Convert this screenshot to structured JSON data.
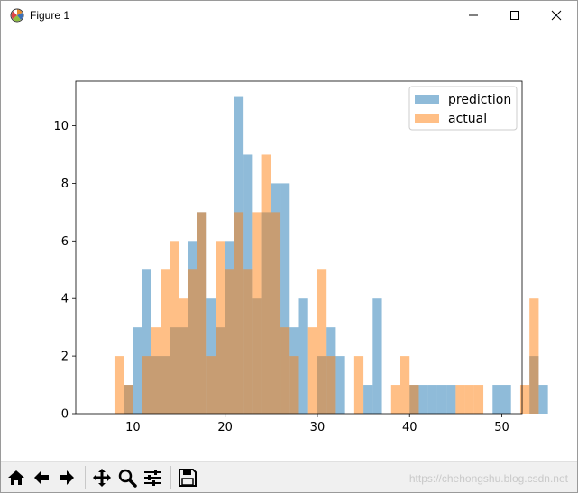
{
  "window": {
    "title": "Figure 1",
    "controls": [
      "minimize-icon",
      "maximize-icon",
      "close-icon"
    ]
  },
  "toolbar": {
    "buttons": [
      "home-icon",
      "back-arrow-icon",
      "forward-arrow-icon",
      "pan-icon",
      "zoom-icon",
      "subplots-config-icon",
      "save-icon"
    ]
  },
  "watermark": "https://chehongshu.blog.csdn.net",
  "chart_data": {
    "type": "bar",
    "subtype": "overlapping-histogram",
    "title": "",
    "xlabel": "",
    "ylabel": "",
    "xlim": [
      3.8,
      52.2
    ],
    "ylim": [
      0,
      11.55
    ],
    "xticks": [
      10,
      20,
      30,
      40,
      50
    ],
    "yticks": [
      0,
      2,
      4,
      6,
      8,
      10
    ],
    "bin_start": 5.0,
    "bin_width": 1.0,
    "legend": {
      "location": "upper right",
      "entries": [
        "prediction",
        "actual"
      ]
    },
    "grid": false,
    "series": [
      {
        "name": "prediction",
        "color": "#1f77b4",
        "alpha": 0.5,
        "values": [
          0,
          0,
          0,
          0,
          1,
          3,
          5,
          2,
          2,
          3,
          3,
          6,
          7,
          4,
          3,
          6,
          11,
          9,
          4,
          7,
          8,
          8,
          3,
          4,
          0,
          2,
          3,
          2,
          0,
          0,
          1,
          4,
          0,
          0,
          0,
          1,
          1,
          1,
          1,
          1,
          0,
          0,
          0,
          0,
          1,
          1,
          0,
          0,
          2,
          1
        ]
      },
      {
        "name": "actual",
        "color": "#ff7f0e",
        "alpha": 0.5,
        "values": [
          0,
          0,
          0,
          2,
          1,
          0,
          2,
          3,
          5,
          6,
          4,
          5,
          7,
          2,
          6,
          5,
          7,
          5,
          7,
          9,
          7,
          3,
          2,
          0,
          3,
          5,
          2,
          0,
          0,
          2,
          0,
          0,
          0,
          1,
          2,
          1,
          0,
          0,
          0,
          0,
          1,
          1,
          1,
          0,
          0,
          0,
          0,
          1,
          4,
          0
        ]
      }
    ]
  }
}
